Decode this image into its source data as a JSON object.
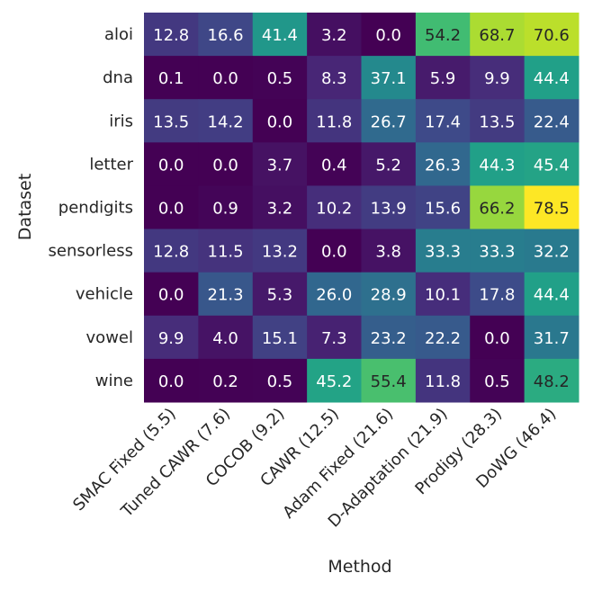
{
  "chart_data": {
    "type": "heatmap",
    "title": "",
    "xlabel": "Method",
    "ylabel": "Dataset",
    "colormap": "viridis",
    "color_range": [
      0.0,
      78.5
    ],
    "columns": [
      "SMAC Fixed (5.5)",
      "Tuned CAWR (7.6)",
      "COCOB (9.2)",
      "CAWR (12.5)",
      "Adam Fixed (21.6)",
      "D-Adaptation (21.9)",
      "Prodigy (28.3)",
      "DoWG (46.4)"
    ],
    "rows": [
      "aloi",
      "dna",
      "iris",
      "letter",
      "pendigits",
      "sensorless",
      "vehicle",
      "vowel",
      "wine"
    ],
    "values": [
      [
        12.8,
        16.6,
        41.4,
        3.2,
        0.0,
        54.2,
        68.7,
        70.6
      ],
      [
        0.1,
        0.0,
        0.5,
        8.3,
        37.1,
        5.9,
        9.9,
        44.4
      ],
      [
        13.5,
        14.2,
        0.0,
        11.8,
        26.7,
        17.4,
        13.5,
        22.4
      ],
      [
        0.0,
        0.0,
        3.7,
        0.4,
        5.2,
        26.3,
        44.3,
        45.4
      ],
      [
        0.0,
        0.9,
        3.2,
        10.2,
        13.9,
        15.6,
        66.2,
        78.5
      ],
      [
        12.8,
        11.5,
        13.2,
        0.0,
        3.8,
        33.3,
        33.3,
        32.2
      ],
      [
        0.0,
        21.3,
        5.3,
        26.0,
        28.9,
        10.1,
        17.8,
        44.4
      ],
      [
        9.9,
        4.0,
        15.1,
        7.3,
        23.2,
        22.2,
        0.0,
        31.7
      ],
      [
        0.0,
        0.2,
        0.5,
        45.2,
        55.4,
        11.8,
        0.5,
        48.2
      ]
    ]
  }
}
